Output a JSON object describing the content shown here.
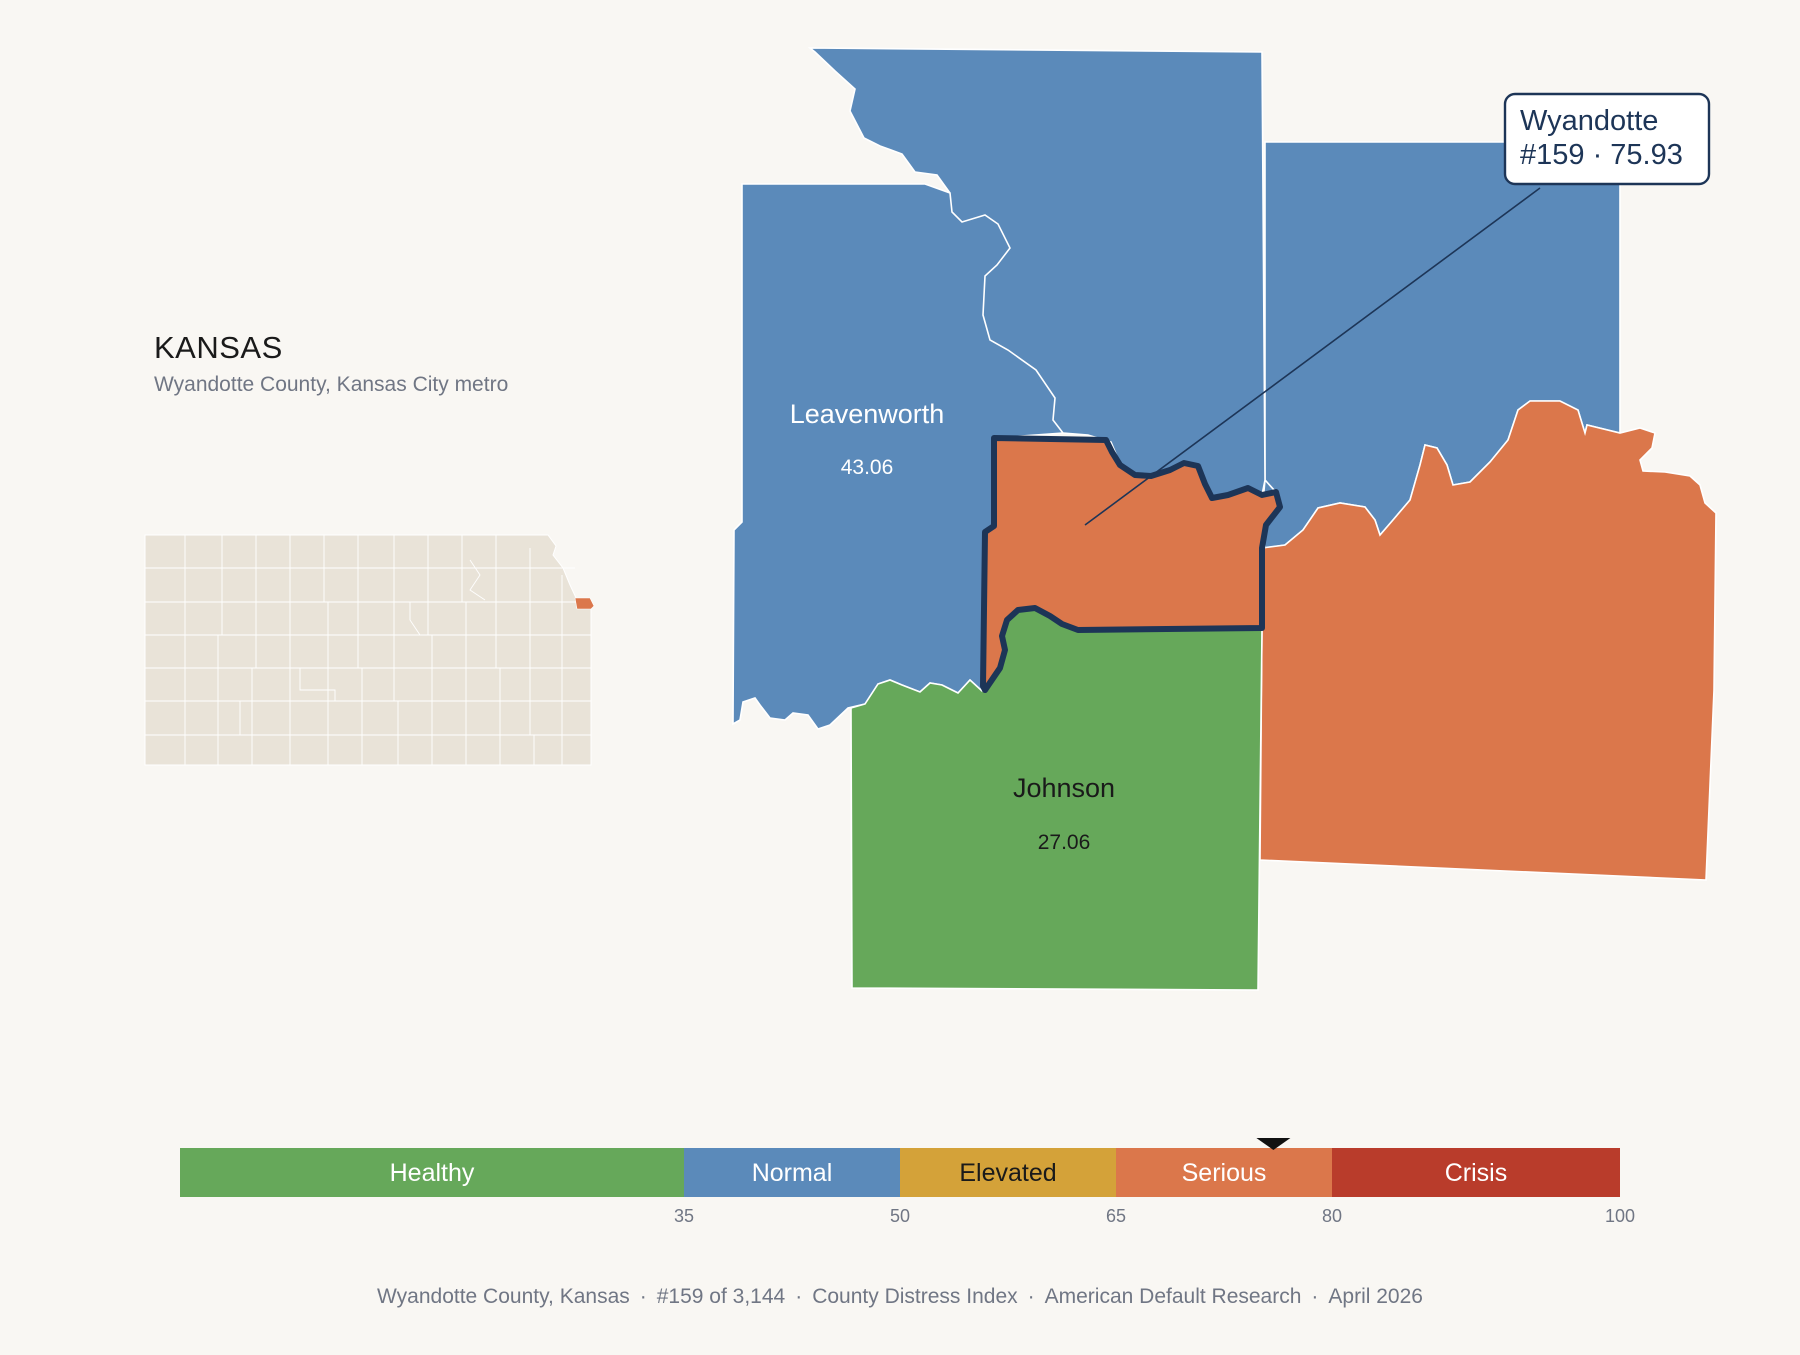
{
  "header": {
    "state_name": "KANSAS",
    "subtitle": "Wyandotte County, Kansas City metro"
  },
  "colors": {
    "background": "#f9f7f3",
    "healthy": "#66a85a",
    "normal": "#5b8aba",
    "elevated": "#d4a239",
    "serious": "#db774b",
    "crisis": "#b93c2b",
    "inset_base": "#e9e3d8",
    "highlight_outline": "#1d3557"
  },
  "map": {
    "highlight": {
      "name": "Wyandotte",
      "rank_score": "#159 · 75.93",
      "score": 75.93,
      "category": "serious"
    },
    "counties": [
      {
        "id": "leavenworth",
        "name": "Leavenworth",
        "score_label": "43.06",
        "score": 43.06,
        "category": "normal"
      },
      {
        "id": "johnson",
        "name": "Johnson",
        "score_label": "27.06",
        "score": 27.06,
        "category": "healthy"
      },
      {
        "id": "platte",
        "name": "",
        "score_label": "",
        "category": "normal"
      },
      {
        "id": "jackson",
        "name": "",
        "score_label": "",
        "category": "serious"
      },
      {
        "id": "wyandotte",
        "name": "",
        "score_label": "",
        "category": "serious"
      }
    ],
    "inset": {
      "highlighted": "Wyandotte"
    }
  },
  "scale": {
    "segments": [
      {
        "label": "Healthy",
        "from": 0,
        "to": 35,
        "color": "#66a85a",
        "text_color": "#ffffff"
      },
      {
        "label": "Normal",
        "from": 35,
        "to": 50,
        "color": "#5b8aba",
        "text_color": "#ffffff"
      },
      {
        "label": "Elevated",
        "from": 50,
        "to": 65,
        "color": "#d4a239",
        "text_color": "#1a1a1a"
      },
      {
        "label": "Serious",
        "from": 65,
        "to": 80,
        "color": "#db774b",
        "text_color": "#ffffff"
      },
      {
        "label": "Crisis",
        "from": 80,
        "to": 100,
        "color": "#b93c2b",
        "text_color": "#ffffff"
      }
    ],
    "ticks": [
      "35",
      "50",
      "65",
      "80",
      "100"
    ],
    "marker_value": 75.93
  },
  "footer": {
    "county": "Wyandotte County, Kansas",
    "rank": "#159 of 3,144",
    "index": "County Distress Index",
    "source": "American Default Research",
    "date": "April 2026",
    "separator": "·"
  }
}
